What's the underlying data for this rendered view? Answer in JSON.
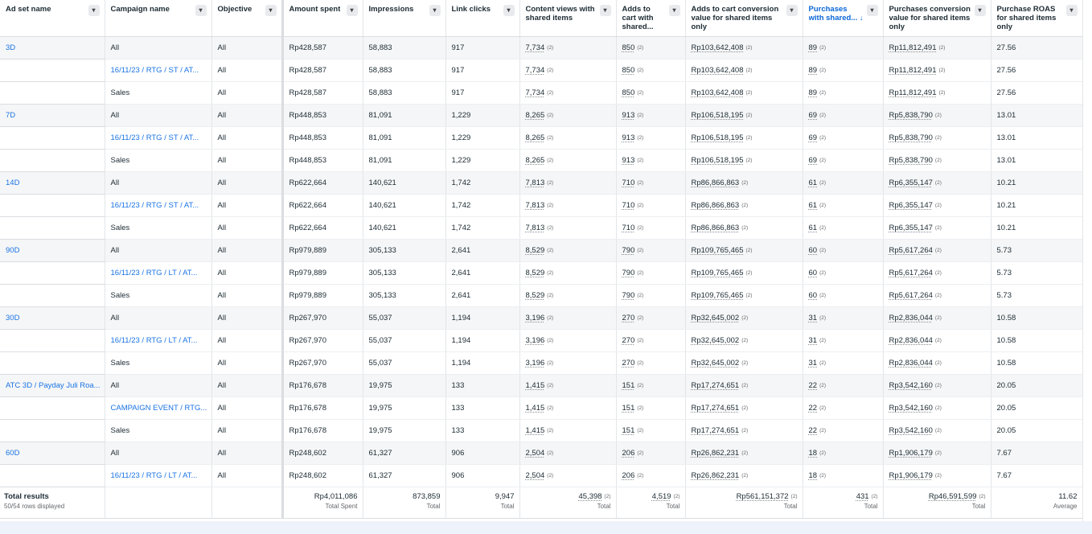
{
  "headers": {
    "adset": "Ad set name",
    "campaign": "Campaign name",
    "objective": "Objective",
    "amount": "Amount spent",
    "impressions": "Impressions",
    "clicks": "Link clicks",
    "cviews": "Content views with shared items",
    "atc": "Adds to cart with shared...",
    "atcval": "Adds to cart conversion value for shared items only",
    "purch": "Purchases with shared...",
    "purchval": "Purchases conversion value for shared items only",
    "roas": "Purchase ROAS for shared items only",
    "sort_icon": "↓"
  },
  "badge": "(2)",
  "rows": [
    {
      "adset": "3D",
      "campaign": "All",
      "objective": "All",
      "amount": "Rp428,587",
      "impressions": "58,883",
      "clicks": "917",
      "cviews": "7,734",
      "atc": "850",
      "atcval": "Rp103,642,408",
      "purch": "89",
      "purchval": "Rp11,812,491",
      "roas": "27.56"
    },
    {
      "adset": "",
      "campaign": "16/11/23 / RTG / ST / AT...",
      "objective": "All",
      "amount": "Rp428,587",
      "impressions": "58,883",
      "clicks": "917",
      "cviews": "7,734",
      "atc": "850",
      "atcval": "Rp103,642,408",
      "purch": "89",
      "purchval": "Rp11,812,491",
      "roas": "27.56"
    },
    {
      "adset": "",
      "campaign": "Sales",
      "objective": "All",
      "amount": "Rp428,587",
      "impressions": "58,883",
      "clicks": "917",
      "cviews": "7,734",
      "atc": "850",
      "atcval": "Rp103,642,408",
      "purch": "89",
      "purchval": "Rp11,812,491",
      "roas": "27.56"
    },
    {
      "adset": "7D",
      "campaign": "All",
      "objective": "All",
      "amount": "Rp448,853",
      "impressions": "81,091",
      "clicks": "1,229",
      "cviews": "8,265",
      "atc": "913",
      "atcval": "Rp106,518,195",
      "purch": "69",
      "purchval": "Rp5,838,790",
      "roas": "13.01"
    },
    {
      "adset": "",
      "campaign": "16/11/23 / RTG / ST / AT...",
      "objective": "All",
      "amount": "Rp448,853",
      "impressions": "81,091",
      "clicks": "1,229",
      "cviews": "8,265",
      "atc": "913",
      "atcval": "Rp106,518,195",
      "purch": "69",
      "purchval": "Rp5,838,790",
      "roas": "13.01"
    },
    {
      "adset": "",
      "campaign": "Sales",
      "objective": "All",
      "amount": "Rp448,853",
      "impressions": "81,091",
      "clicks": "1,229",
      "cviews": "8,265",
      "atc": "913",
      "atcval": "Rp106,518,195",
      "purch": "69",
      "purchval": "Rp5,838,790",
      "roas": "13.01"
    },
    {
      "adset": "14D",
      "campaign": "All",
      "objective": "All",
      "amount": "Rp622,664",
      "impressions": "140,621",
      "clicks": "1,742",
      "cviews": "7,813",
      "atc": "710",
      "atcval": "Rp86,866,863",
      "purch": "61",
      "purchval": "Rp6,355,147",
      "roas": "10.21"
    },
    {
      "adset": "",
      "campaign": "16/11/23 / RTG / ST / AT...",
      "objective": "All",
      "amount": "Rp622,664",
      "impressions": "140,621",
      "clicks": "1,742",
      "cviews": "7,813",
      "atc": "710",
      "atcval": "Rp86,866,863",
      "purch": "61",
      "purchval": "Rp6,355,147",
      "roas": "10.21"
    },
    {
      "adset": "",
      "campaign": "Sales",
      "objective": "All",
      "amount": "Rp622,664",
      "impressions": "140,621",
      "clicks": "1,742",
      "cviews": "7,813",
      "atc": "710",
      "atcval": "Rp86,866,863",
      "purch": "61",
      "purchval": "Rp6,355,147",
      "roas": "10.21"
    },
    {
      "adset": "90D",
      "campaign": "All",
      "objective": "All",
      "amount": "Rp979,889",
      "impressions": "305,133",
      "clicks": "2,641",
      "cviews": "8,529",
      "atc": "790",
      "atcval": "Rp109,765,465",
      "purch": "60",
      "purchval": "Rp5,617,264",
      "roas": "5.73"
    },
    {
      "adset": "",
      "campaign": "16/11/23 / RTG / LT / AT...",
      "objective": "All",
      "amount": "Rp979,889",
      "impressions": "305,133",
      "clicks": "2,641",
      "cviews": "8,529",
      "atc": "790",
      "atcval": "Rp109,765,465",
      "purch": "60",
      "purchval": "Rp5,617,264",
      "roas": "5.73"
    },
    {
      "adset": "",
      "campaign": "Sales",
      "objective": "All",
      "amount": "Rp979,889",
      "impressions": "305,133",
      "clicks": "2,641",
      "cviews": "8,529",
      "atc": "790",
      "atcval": "Rp109,765,465",
      "purch": "60",
      "purchval": "Rp5,617,264",
      "roas": "5.73"
    },
    {
      "adset": "30D",
      "campaign": "All",
      "objective": "All",
      "amount": "Rp267,970",
      "impressions": "55,037",
      "clicks": "1,194",
      "cviews": "3,196",
      "atc": "270",
      "atcval": "Rp32,645,002",
      "purch": "31",
      "purchval": "Rp2,836,044",
      "roas": "10.58"
    },
    {
      "adset": "",
      "campaign": "16/11/23 / RTG / LT / AT...",
      "objective": "All",
      "amount": "Rp267,970",
      "impressions": "55,037",
      "clicks": "1,194",
      "cviews": "3,196",
      "atc": "270",
      "atcval": "Rp32,645,002",
      "purch": "31",
      "purchval": "Rp2,836,044",
      "roas": "10.58"
    },
    {
      "adset": "",
      "campaign": "Sales",
      "objective": "All",
      "amount": "Rp267,970",
      "impressions": "55,037",
      "clicks": "1,194",
      "cviews": "3,196",
      "atc": "270",
      "atcval": "Rp32,645,002",
      "purch": "31",
      "purchval": "Rp2,836,044",
      "roas": "10.58"
    },
    {
      "adset": "ATC 3D / Payday Juli Roa...",
      "campaign": "All",
      "objective": "All",
      "amount": "Rp176,678",
      "impressions": "19,975",
      "clicks": "133",
      "cviews": "1,415",
      "atc": "151",
      "atcval": "Rp17,274,651",
      "purch": "22",
      "purchval": "Rp3,542,160",
      "roas": "20.05"
    },
    {
      "adset": "",
      "campaign": "CAMPAIGN EVENT / RTG...",
      "objective": "All",
      "amount": "Rp176,678",
      "impressions": "19,975",
      "clicks": "133",
      "cviews": "1,415",
      "atc": "151",
      "atcval": "Rp17,274,651",
      "purch": "22",
      "purchval": "Rp3,542,160",
      "roas": "20.05"
    },
    {
      "adset": "",
      "campaign": "Sales",
      "objective": "All",
      "amount": "Rp176,678",
      "impressions": "19,975",
      "clicks": "133",
      "cviews": "1,415",
      "atc": "151",
      "atcval": "Rp17,274,651",
      "purch": "22",
      "purchval": "Rp3,542,160",
      "roas": "20.05"
    },
    {
      "adset": "60D",
      "campaign": "All",
      "objective": "All",
      "amount": "Rp248,602",
      "impressions": "61,327",
      "clicks": "906",
      "cviews": "2,504",
      "atc": "206",
      "atcval": "Rp26,862,231",
      "purch": "18",
      "purchval": "Rp1,906,179",
      "roas": "7.67"
    },
    {
      "adset": "",
      "campaign": "16/11/23 / RTG / LT / AT...",
      "objective": "All",
      "amount": "Rp248,602",
      "impressions": "61,327",
      "clicks": "906",
      "cviews": "2,504",
      "atc": "206",
      "atcval": "Rp26,862,231",
      "purch": "18",
      "purchval": "Rp1,906,179",
      "roas": "7.67"
    }
  ],
  "totals": {
    "title": "Total results",
    "sub": "50/54 rows displayed",
    "amount": "Rp4,011,086",
    "amount_label": "Total Spent",
    "impressions": "873,859",
    "impressions_label": "Total",
    "clicks": "9,947",
    "clicks_label": "Total",
    "cviews": "45,398",
    "cviews_label": "Total",
    "atc": "4,519",
    "atc_label": "Total",
    "atcval": "Rp561,151,372",
    "atcval_label": "Total",
    "purch": "431",
    "purch_label": "Total",
    "purchval": "Rp46,591,599",
    "purchval_label": "Total",
    "roas": "11.62",
    "roas_label": "Average"
  },
  "colors": {
    "link": "#1b74e4",
    "sorted": "#0a66d8",
    "stripe": "#f5f6f7"
  }
}
